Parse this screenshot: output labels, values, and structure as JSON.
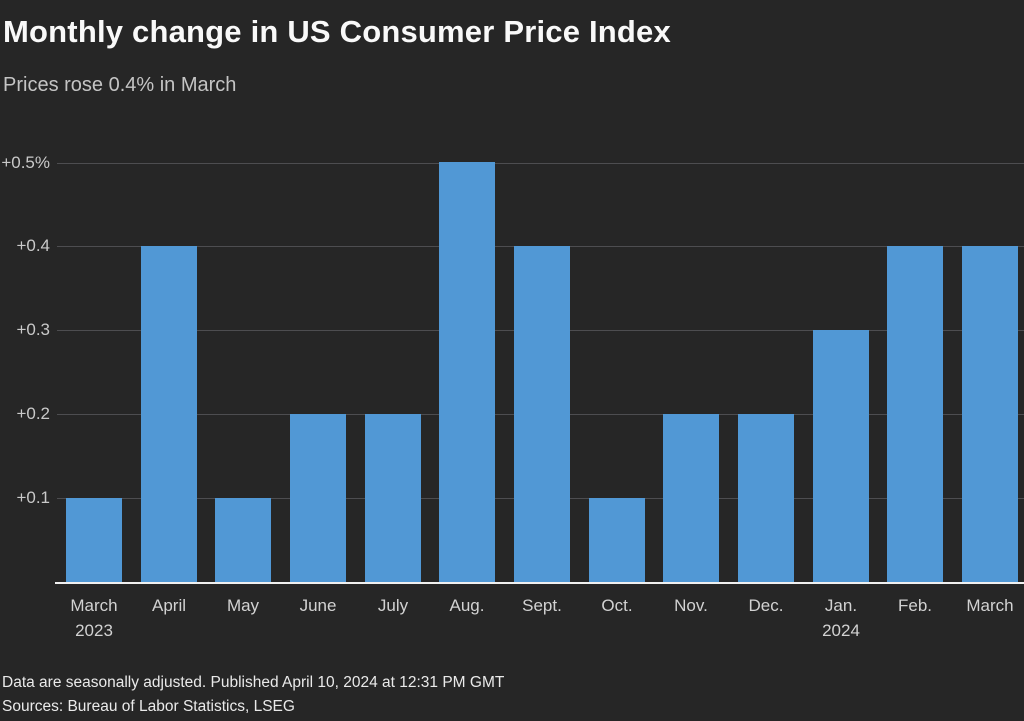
{
  "chart_data": {
    "type": "bar",
    "title": "Monthly change in US Consumer Price Index",
    "subtitle": "Prices rose 0.4% in March",
    "categories": [
      "March",
      "April",
      "May",
      "June",
      "July",
      "Aug.",
      "Sept.",
      "Oct.",
      "Nov.",
      "Dec.",
      "Jan.",
      "Feb.",
      "March"
    ],
    "category_sublabels": [
      "2023",
      "",
      "",
      "",
      "",
      "",
      "",
      "",
      "",
      "",
      "2024",
      "",
      ""
    ],
    "values": [
      0.1,
      0.4,
      0.1,
      0.2,
      0.2,
      0.5,
      0.4,
      0.1,
      0.2,
      0.2,
      0.3,
      0.4,
      0.4
    ],
    "xlabel": "",
    "ylabel": "",
    "ylim": [
      0,
      0.5
    ],
    "y_ticks": [
      {
        "value": 0.5,
        "label": "+0.5%"
      },
      {
        "value": 0.4,
        "label": "+0.4"
      },
      {
        "value": 0.3,
        "label": "+0.3"
      },
      {
        "value": 0.2,
        "label": "+0.2"
      },
      {
        "value": 0.1,
        "label": "+0.1"
      }
    ],
    "grid": true,
    "legend": "none",
    "colors": {
      "bar": "#5198d5",
      "background": "#262626",
      "gridline": "#4d4d50",
      "baseline": "#f0f0f0"
    }
  },
  "footer": {
    "note": "Data are seasonally adjusted. Published April 10, 2024 at 12:31 PM GMT",
    "sources": "Sources: Bureau of Labor Statistics, LSEG"
  }
}
